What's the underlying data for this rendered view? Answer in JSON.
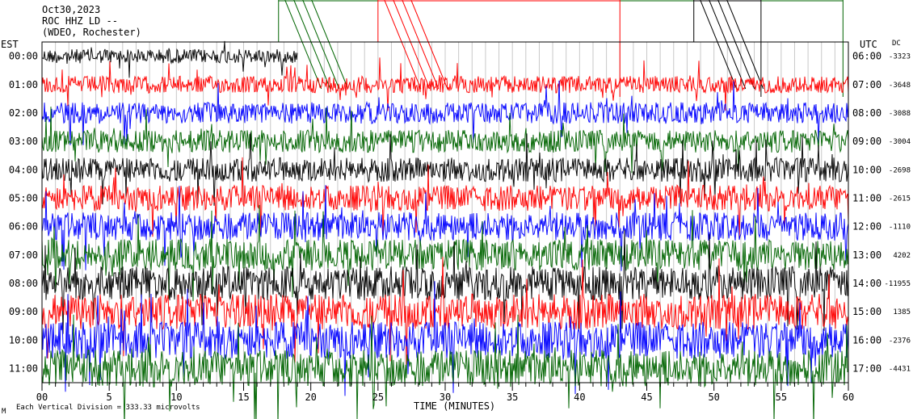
{
  "header": {
    "date": "Oct30,2023",
    "station": "ROC HHZ LD --",
    "location": "(WDEO, Rochester)"
  },
  "footer": {
    "scale_note": "Each Vertical Division = 333.33 microvolts",
    "corner_mark": "M"
  },
  "chart_data": {
    "type": "line",
    "title": "",
    "xlabel": "TIME (MINUTES)",
    "ylabel_left": "EST",
    "ylabel_right": "UTC",
    "dc_header": "DC",
    "xlim": [
      0,
      60
    ],
    "x_ticks": [
      0,
      5,
      10,
      15,
      20,
      25,
      30,
      35,
      40,
      45,
      50,
      55,
      60
    ],
    "x_tick_labels": [
      "00",
      "5",
      "10",
      "15",
      "20",
      "25",
      "30",
      "35",
      "40",
      "45",
      "50",
      "55",
      "60"
    ],
    "grid": true,
    "trace_colors": [
      "#000000",
      "#ff0000",
      "#0000ff",
      "#006400"
    ],
    "rows": [
      {
        "est": "00:00",
        "utc": "06:00",
        "dc": "-3323",
        "end_minute": 19
      },
      {
        "est": "01:00",
        "utc": "07:00",
        "dc": "-3648",
        "end_minute": 60
      },
      {
        "est": "02:00",
        "utc": "08:00",
        "dc": "-3088",
        "end_minute": 60
      },
      {
        "est": "03:00",
        "utc": "09:00",
        "dc": "-3004",
        "end_minute": 60
      },
      {
        "est": "04:00",
        "utc": "10:00",
        "dc": "-2698",
        "end_minute": 60
      },
      {
        "est": "05:00",
        "utc": "11:00",
        "dc": "-2615",
        "end_minute": 60
      },
      {
        "est": "06:00",
        "utc": "12:00",
        "dc": "-1110",
        "end_minute": 60
      },
      {
        "est": "07:00",
        "utc": "13:00",
        "dc": "4202",
        "end_minute": 60
      },
      {
        "est": "08:00",
        "utc": "14:00",
        "dc": "-11955",
        "end_minute": 60
      },
      {
        "est": "09:00",
        "utc": "15:00",
        "dc": "1385",
        "end_minute": 60
      },
      {
        "est": "10:00",
        "utc": "16:00",
        "dc": "-2376",
        "end_minute": 60
      },
      {
        "est": "11:00",
        "utc": "17:00",
        "dc": "-4431",
        "end_minute": 60
      }
    ],
    "noise_level": [
      0.5,
      0.6,
      0.75,
      0.8,
      0.85,
      0.9,
      1.0,
      1.1,
      1.2,
      1.25,
      1.3,
      1.3
    ],
    "time_markers": [
      {
        "color": "#006400",
        "minute_start": 17.6,
        "minute_end": 59.6,
        "marker_minute": 20.5
      },
      {
        "color": "#ff0000",
        "minute_start": 25.0,
        "minute_end": 43.0,
        "marker_minute": 28.5
      },
      {
        "color": "#000000",
        "minute_start": 48.5,
        "minute_end": 53.5,
        "marker_minute": 51.0
      }
    ]
  }
}
